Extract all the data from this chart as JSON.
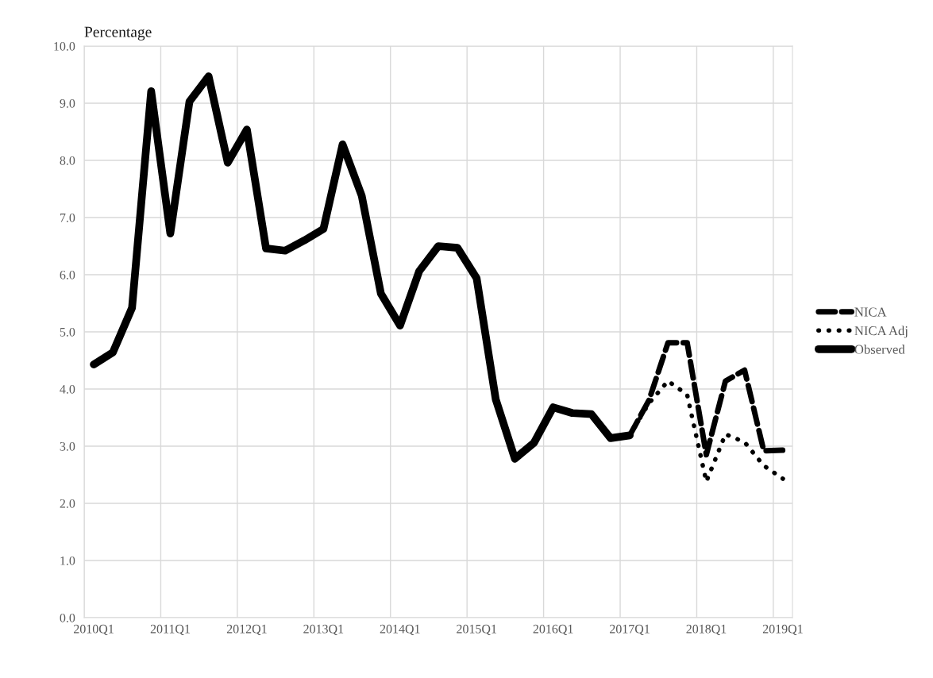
{
  "chart_data": {
    "type": "line",
    "ylabel": "Percentage",
    "categories": [
      "2010Q1",
      null,
      null,
      null,
      "2011Q1",
      null,
      null,
      null,
      "2012Q1",
      null,
      null,
      null,
      "2013Q1",
      null,
      null,
      null,
      "2014Q1",
      null,
      null,
      null,
      "2015Q1",
      null,
      null,
      null,
      "2016Q1",
      null,
      null,
      null,
      "2017Q1",
      null,
      null,
      null,
      "2018Q1",
      null,
      null,
      null,
      "2019Q1"
    ],
    "series": [
      {
        "name": "NICA",
        "color": "#000000",
        "line_style": "dashed",
        "values": [
          null,
          null,
          null,
          null,
          null,
          null,
          null,
          null,
          null,
          null,
          null,
          null,
          null,
          null,
          null,
          null,
          null,
          null,
          null,
          null,
          null,
          null,
          null,
          null,
          null,
          null,
          null,
          null,
          3.19,
          3.8,
          4.81,
          4.81,
          2.85,
          4.14,
          4.33,
          2.92,
          2.93
        ]
      },
      {
        "name": "NICA Adj",
        "color": "#000000",
        "line_style": "dotted",
        "values": [
          null,
          null,
          null,
          null,
          null,
          null,
          null,
          null,
          null,
          null,
          null,
          null,
          null,
          null,
          null,
          null,
          null,
          null,
          null,
          null,
          null,
          null,
          null,
          null,
          null,
          null,
          null,
          null,
          3.19,
          3.75,
          4.14,
          3.9,
          2.38,
          3.21,
          3.07,
          2.66,
          2.43
        ]
      },
      {
        "name": "Observed",
        "color": "#000000",
        "line_style": "solid",
        "values": [
          4.43,
          4.64,
          5.42,
          9.21,
          6.72,
          9.03,
          9.47,
          7.96,
          8.54,
          6.46,
          6.42,
          6.6,
          6.8,
          8.28,
          7.38,
          5.67,
          5.11,
          6.06,
          6.5,
          6.47,
          5.94,
          3.82,
          2.78,
          3.06,
          3.68,
          3.58,
          3.56,
          3.14,
          3.19,
          null,
          null,
          null,
          null,
          null,
          null,
          null,
          null
        ]
      }
    ],
    "ylim": [
      0,
      10
    ],
    "yticks": [
      {
        "value": 0,
        "label": "0.0"
      },
      {
        "value": 1,
        "label": "1.0"
      },
      {
        "value": 2,
        "label": "2.0"
      },
      {
        "value": 3,
        "label": "3.0"
      },
      {
        "value": 4,
        "label": "4.0"
      },
      {
        "value": 5,
        "label": "5.0"
      },
      {
        "value": 6,
        "label": "6.0"
      },
      {
        "value": 7,
        "label": "7.0"
      },
      {
        "value": 8,
        "label": "8.0"
      },
      {
        "value": 9,
        "label": "9.0"
      },
      {
        "value": 10,
        "label": "10.0"
      }
    ],
    "grid": true,
    "legend": "right",
    "marker": "none"
  }
}
